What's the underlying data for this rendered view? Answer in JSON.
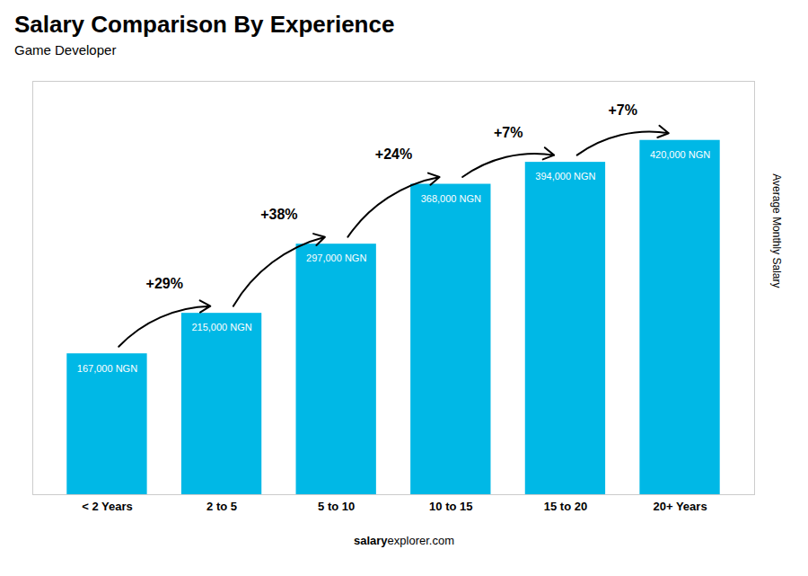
{
  "chart_data": {
    "type": "bar",
    "title": "Salary Comparison By Experience",
    "subtitle": "Game Developer",
    "categories": [
      "< 2 Years",
      "2 to 5",
      "5 to 10",
      "10 to 15",
      "15 to 20",
      "20+ Years"
    ],
    "values": [
      167000,
      215000,
      297000,
      368000,
      394000,
      420000
    ],
    "value_labels": [
      "167,000 NGN",
      "215,000 NGN",
      "297,000 NGN",
      "368,000 NGN",
      "394,000 NGN",
      "420,000 NGN"
    ],
    "data_labels": true,
    "color": "#00b8e6",
    "ylabel": "Average Monthly Salary",
    "ylim": [
      0,
      490000
    ],
    "tick_labels": "x",
    "annotations": [
      {
        "text": "+29%",
        "from": "< 2 Years",
        "to": "2 to 5"
      },
      {
        "text": "+38%",
        "from": "2 to 5",
        "to": "5 to 10"
      },
      {
        "text": "+24%",
        "from": "5 to 10",
        "to": "10 to 15"
      },
      {
        "text": "+7%",
        "from": "10 to 15",
        "to": "15 to 20"
      },
      {
        "text": "+7%",
        "from": "15 to 20",
        "to": "20+ Years"
      }
    ],
    "footer": [
      "salary",
      "explorer.com"
    ]
  }
}
